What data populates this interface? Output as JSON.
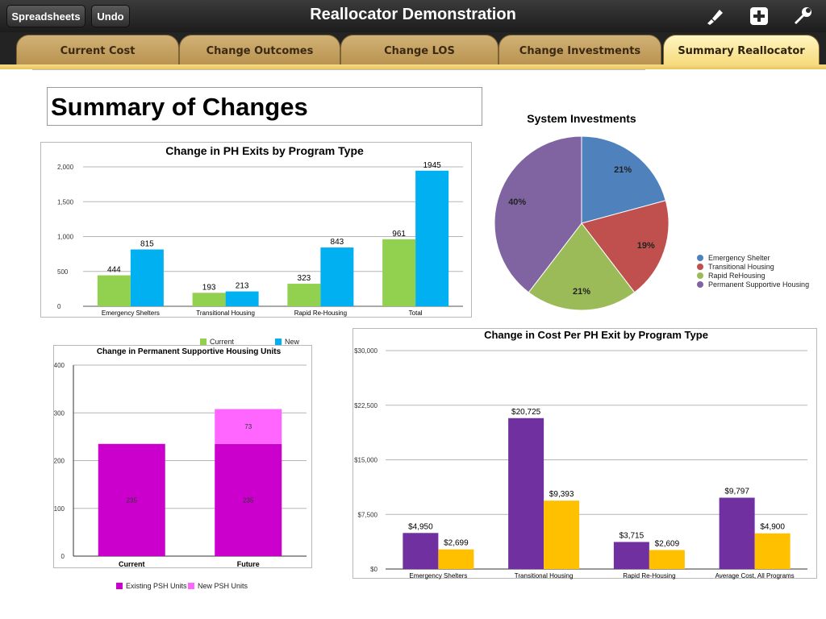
{
  "toolbar": {
    "spreadsheets_label": "Spreadsheets",
    "undo_label": "Undo",
    "title": "Reallocator Demonstration"
  },
  "tabs": [
    {
      "label": "Current Cost"
    },
    {
      "label": "Change Outcomes"
    },
    {
      "label": "Change LOS"
    },
    {
      "label": "Change Investments"
    },
    {
      "label": "Summary Reallocator"
    }
  ],
  "page": {
    "title": "Summary of Changes"
  },
  "colors": {
    "current_green": "#92d050",
    "new_blue": "#00b0f0",
    "psh_existing": "#cc00cc",
    "psh_new": "#ff66ff",
    "cost_current": "#7030a0",
    "cost_new": "#ffc000",
    "pie_es": "#4f81bd",
    "pie_th": "#c0504d",
    "pie_rrh": "#9bbb59",
    "pie_psh": "#8064a2"
  },
  "chart_data": [
    {
      "id": "ph_exits",
      "type": "bar",
      "title": "Change in PH Exits by Program Type",
      "categories": [
        "Emergency Shelters",
        "Transitional Housing",
        "Rapid Re-Housing",
        "Total"
      ],
      "series": [
        {
          "name": "Current",
          "values": [
            444,
            193,
            323,
            961
          ]
        },
        {
          "name": "New",
          "values": [
            815,
            213,
            843,
            1945
          ]
        }
      ],
      "yticks": [
        0,
        500,
        1000,
        1500,
        2000
      ],
      "ytick_labels": [
        "0",
        "500",
        "1,000",
        "1,500",
        "2,000"
      ],
      "ylim": [
        0,
        2000
      ],
      "legend": "bottom"
    },
    {
      "id": "system_investments",
      "type": "pie",
      "title": "System Investments",
      "labels": [
        "Emergency Shelter",
        "Transitional Housing",
        "Rapid ReHousing",
        "Permanent Supportive Housing"
      ],
      "values": [
        21,
        19,
        21,
        40
      ],
      "value_labels": [
        "21%",
        "19%",
        "21%",
        "40%"
      ],
      "legend": "right"
    },
    {
      "id": "psh_units",
      "type": "bar",
      "stacked": true,
      "title": "Change in Permanent Supportive Housing Units",
      "categories": [
        "Current",
        "Future"
      ],
      "series": [
        {
          "name": "Existing PSH Units",
          "values": [
            235,
            235
          ]
        },
        {
          "name": "New PSH Units",
          "values": [
            0,
            73
          ]
        }
      ],
      "value_labels": [
        [
          "235",
          "235"
        ],
        [
          "",
          "73"
        ]
      ],
      "yticks": [
        0,
        100,
        200,
        300,
        400
      ],
      "ytick_labels": [
        "0",
        "100",
        "200",
        "300",
        "400"
      ],
      "ylim": [
        0,
        400
      ],
      "legend": "bottom"
    },
    {
      "id": "cost_per_exit",
      "type": "bar",
      "title": "Change in Cost Per PH Exit by Program Type",
      "categories": [
        "Emergency Shelters",
        "Transitional Housing",
        "Rapid Re-Housing",
        "Average Cost, All Programs"
      ],
      "series": [
        {
          "name": "Current",
          "values": [
            4950,
            20725,
            3715,
            9797
          ]
        },
        {
          "name": "New",
          "values": [
            2699,
            9393,
            2609,
            4900
          ]
        }
      ],
      "value_labels": [
        [
          "$4,950",
          "$20,725",
          "$3,715",
          "$9,797"
        ],
        [
          "$2,699",
          "$9,393",
          "$2,609",
          "$4,900"
        ]
      ],
      "yticks": [
        0,
        7500,
        15000,
        22500,
        30000
      ],
      "ytick_labels": [
        "$0",
        "$7,500",
        "$15,000",
        "$22,500",
        "$30,000"
      ],
      "ylim": [
        0,
        30000
      ]
    }
  ]
}
